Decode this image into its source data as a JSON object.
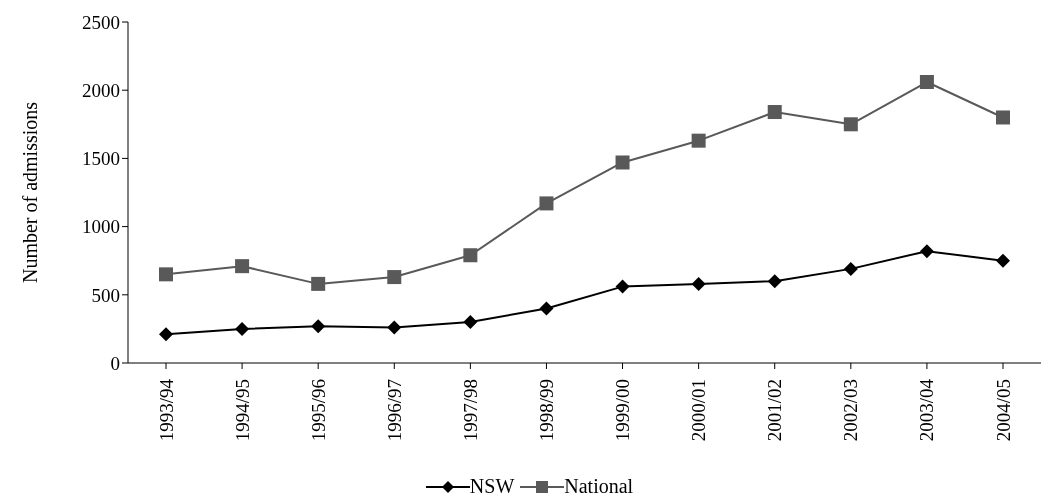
{
  "chart_data": {
    "type": "line",
    "ylabel": "Number of admissions",
    "categories": [
      "1993/94",
      "1994/95",
      "1995/96",
      "1996/97",
      "1997/98",
      "1998/99",
      "1999/00",
      "2000/01",
      "2001/02",
      "2002/03",
      "2003/04",
      "2004/05"
    ],
    "series": [
      {
        "name": "NSW",
        "color": "#000000",
        "marker": "diamond",
        "values": [
          210,
          250,
          270,
          260,
          300,
          400,
          560,
          580,
          600,
          690,
          820,
          750
        ]
      },
      {
        "name": "National",
        "color": "#595959",
        "marker": "square",
        "values": [
          650,
          710,
          580,
          630,
          790,
          1170,
          1470,
          1630,
          1840,
          1750,
          2060,
          1800
        ]
      }
    ],
    "ylim": [
      0,
      2500
    ],
    "yticks": [
      0,
      500,
      1000,
      1500,
      2000,
      2500
    ],
    "grid": false,
    "legend": "bottom",
    "line_style": "solid"
  }
}
